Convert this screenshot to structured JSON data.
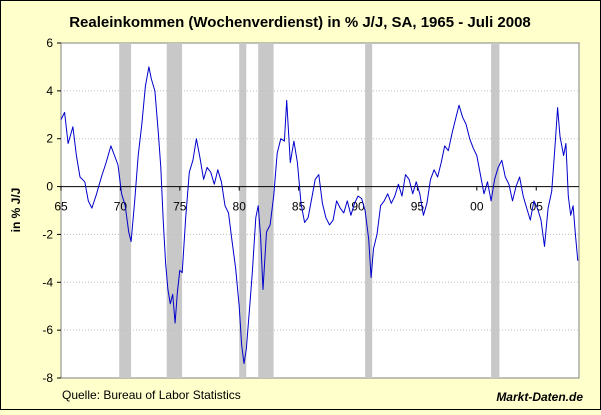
{
  "chart_data": {
    "type": "line",
    "title": "Realeinkommen (Wochenverdienst) in % J/J, SA, 1965 - Juli 2008",
    "ylabel": "in % J/J",
    "xlabel": "",
    "source_text": "Quelle: Bureau of Labor Statistics",
    "brand_text": "Markt-Daten.de",
    "xlim": [
      1965,
      2008.6
    ],
    "ylim": [
      -8,
      6
    ],
    "y_ticks": [
      {
        "value": 6,
        "label": "6"
      },
      {
        "value": 4,
        "label": "4"
      },
      {
        "value": 2,
        "label": "2"
      },
      {
        "value": 0,
        "label": "0"
      },
      {
        "value": -2,
        "label": "-2"
      },
      {
        "value": -4,
        "label": "-4"
      },
      {
        "value": -6,
        "label": "-6"
      },
      {
        "value": -8,
        "label": "-8"
      }
    ],
    "x_ticks": [
      {
        "value": 1965,
        "label": "65"
      },
      {
        "value": 1970,
        "label": "70"
      },
      {
        "value": 1975,
        "label": "75"
      },
      {
        "value": 1980,
        "label": "80"
      },
      {
        "value": 1985,
        "label": "85"
      },
      {
        "value": 1990,
        "label": "90"
      },
      {
        "value": 1995,
        "label": "95"
      },
      {
        "value": 2000,
        "label": "00"
      },
      {
        "value": 2005,
        "label": "05"
      }
    ],
    "grid": true,
    "recessions": [
      [
        1969.9,
        1970.9
      ],
      [
        1973.9,
        1975.2
      ],
      [
        1980.0,
        1980.6
      ],
      [
        1981.6,
        1982.9
      ],
      [
        1990.6,
        1991.2
      ],
      [
        2001.2,
        2001.9
      ]
    ],
    "colors": {
      "line": "#0000cc",
      "recession": "#c8c8c8",
      "plot_bg": "#ffffff",
      "page_bg": "#ffffcc",
      "grid": "#bfbfbf"
    },
    "series": [
      {
        "points": [
          [
            1965.0,
            2.8
          ],
          [
            1965.3,
            3.1
          ],
          [
            1965.6,
            1.8
          ],
          [
            1966.0,
            2.5
          ],
          [
            1966.3,
            1.3
          ],
          [
            1966.6,
            0.4
          ],
          [
            1967.0,
            0.2
          ],
          [
            1967.3,
            -0.6
          ],
          [
            1967.6,
            -0.9
          ],
          [
            1968.0,
            -0.3
          ],
          [
            1968.4,
            0.4
          ],
          [
            1968.8,
            1.0
          ],
          [
            1969.2,
            1.7
          ],
          [
            1969.5,
            1.3
          ],
          [
            1969.8,
            0.9
          ],
          [
            1970.1,
            -0.3
          ],
          [
            1970.4,
            -0.8
          ],
          [
            1970.7,
            -1.9
          ],
          [
            1970.9,
            -2.3
          ],
          [
            1971.2,
            -0.6
          ],
          [
            1971.5,
            1.3
          ],
          [
            1971.8,
            2.6
          ],
          [
            1972.1,
            4.2
          ],
          [
            1972.4,
            5.0
          ],
          [
            1972.6,
            4.5
          ],
          [
            1972.9,
            4.0
          ],
          [
            1973.2,
            2.2
          ],
          [
            1973.4,
            0.8
          ],
          [
            1973.6,
            -1.4
          ],
          [
            1973.8,
            -3.2
          ],
          [
            1974.0,
            -4.3
          ],
          [
            1974.2,
            -4.9
          ],
          [
            1974.4,
            -4.5
          ],
          [
            1974.6,
            -5.7
          ],
          [
            1974.8,
            -4.4
          ],
          [
            1975.0,
            -3.5
          ],
          [
            1975.2,
            -3.6
          ],
          [
            1975.5,
            -1.3
          ],
          [
            1975.8,
            0.6
          ],
          [
            1976.1,
            1.1
          ],
          [
            1976.4,
            2.0
          ],
          [
            1976.7,
            1.2
          ],
          [
            1977.0,
            0.3
          ],
          [
            1977.3,
            0.8
          ],
          [
            1977.6,
            0.6
          ],
          [
            1977.9,
            0.1
          ],
          [
            1978.2,
            0.7
          ],
          [
            1978.5,
            0.2
          ],
          [
            1978.8,
            -0.8
          ],
          [
            1979.1,
            -1.1
          ],
          [
            1979.4,
            -2.3
          ],
          [
            1979.7,
            -3.4
          ],
          [
            1980.0,
            -5.0
          ],
          [
            1980.2,
            -6.6
          ],
          [
            1980.4,
            -7.4
          ],
          [
            1980.6,
            -6.8
          ],
          [
            1980.9,
            -4.9
          ],
          [
            1981.1,
            -3.6
          ],
          [
            1981.4,
            -1.3
          ],
          [
            1981.6,
            -0.8
          ],
          [
            1981.8,
            -2.1
          ],
          [
            1982.0,
            -4.3
          ],
          [
            1982.3,
            -1.9
          ],
          [
            1982.6,
            -1.6
          ],
          [
            1982.9,
            -0.4
          ],
          [
            1983.2,
            1.4
          ],
          [
            1983.5,
            2.0
          ],
          [
            1983.8,
            1.9
          ],
          [
            1984.0,
            3.6
          ],
          [
            1984.3,
            1.0
          ],
          [
            1984.6,
            1.9
          ],
          [
            1984.9,
            1.0
          ],
          [
            1985.2,
            -0.7
          ],
          [
            1985.5,
            -1.5
          ],
          [
            1985.8,
            -1.3
          ],
          [
            1986.1,
            -0.5
          ],
          [
            1986.4,
            0.3
          ],
          [
            1986.7,
            0.5
          ],
          [
            1987.0,
            -0.7
          ],
          [
            1987.3,
            -1.3
          ],
          [
            1987.6,
            -1.6
          ],
          [
            1987.9,
            -1.4
          ],
          [
            1988.2,
            -0.6
          ],
          [
            1988.5,
            -0.9
          ],
          [
            1988.8,
            -1.1
          ],
          [
            1989.1,
            -0.6
          ],
          [
            1989.4,
            -1.2
          ],
          [
            1989.7,
            -0.7
          ],
          [
            1990.0,
            -0.4
          ],
          [
            1990.3,
            -0.5
          ],
          [
            1990.6,
            -1.0
          ],
          [
            1990.9,
            -2.2
          ],
          [
            1991.1,
            -3.8
          ],
          [
            1991.3,
            -2.6
          ],
          [
            1991.6,
            -2.0
          ],
          [
            1991.9,
            -0.8
          ],
          [
            1992.2,
            -0.6
          ],
          [
            1992.5,
            -0.3
          ],
          [
            1992.8,
            -0.7
          ],
          [
            1993.1,
            -0.4
          ],
          [
            1993.4,
            0.1
          ],
          [
            1993.7,
            -0.4
          ],
          [
            1994.0,
            0.5
          ],
          [
            1994.3,
            0.3
          ],
          [
            1994.6,
            -0.3
          ],
          [
            1994.9,
            0.2
          ],
          [
            1995.2,
            -0.3
          ],
          [
            1995.5,
            -1.2
          ],
          [
            1995.8,
            -0.7
          ],
          [
            1996.1,
            0.3
          ],
          [
            1996.4,
            0.7
          ],
          [
            1996.7,
            0.4
          ],
          [
            1997.0,
            1.0
          ],
          [
            1997.3,
            1.7
          ],
          [
            1997.6,
            1.5
          ],
          [
            1997.9,
            2.2
          ],
          [
            1998.2,
            2.8
          ],
          [
            1998.5,
            3.4
          ],
          [
            1998.8,
            2.9
          ],
          [
            1999.1,
            2.6
          ],
          [
            1999.4,
            2.0
          ],
          [
            1999.7,
            1.6
          ],
          [
            2000.0,
            1.3
          ],
          [
            2000.3,
            0.5
          ],
          [
            2000.6,
            -0.3
          ],
          [
            2000.9,
            0.2
          ],
          [
            2001.2,
            -0.6
          ],
          [
            2001.5,
            0.3
          ],
          [
            2001.8,
            0.8
          ],
          [
            2002.1,
            1.1
          ],
          [
            2002.4,
            0.4
          ],
          [
            2002.7,
            0.1
          ],
          [
            2003.0,
            -0.6
          ],
          [
            2003.3,
            0.0
          ],
          [
            2003.6,
            0.4
          ],
          [
            2003.9,
            -0.4
          ],
          [
            2004.2,
            -0.9
          ],
          [
            2004.5,
            -1.4
          ],
          [
            2004.8,
            -0.6
          ],
          [
            2005.1,
            -0.9
          ],
          [
            2005.4,
            -1.4
          ],
          [
            2005.7,
            -2.5
          ],
          [
            2006.0,
            -0.9
          ],
          [
            2006.3,
            -0.2
          ],
          [
            2006.6,
            1.8
          ],
          [
            2006.8,
            3.3
          ],
          [
            2007.0,
            2.1
          ],
          [
            2007.3,
            1.3
          ],
          [
            2007.5,
            1.8
          ],
          [
            2007.7,
            -0.4
          ],
          [
            2007.9,
            -1.2
          ],
          [
            2008.1,
            -0.8
          ],
          [
            2008.3,
            -2.0
          ],
          [
            2008.5,
            -3.1
          ]
        ]
      }
    ]
  }
}
